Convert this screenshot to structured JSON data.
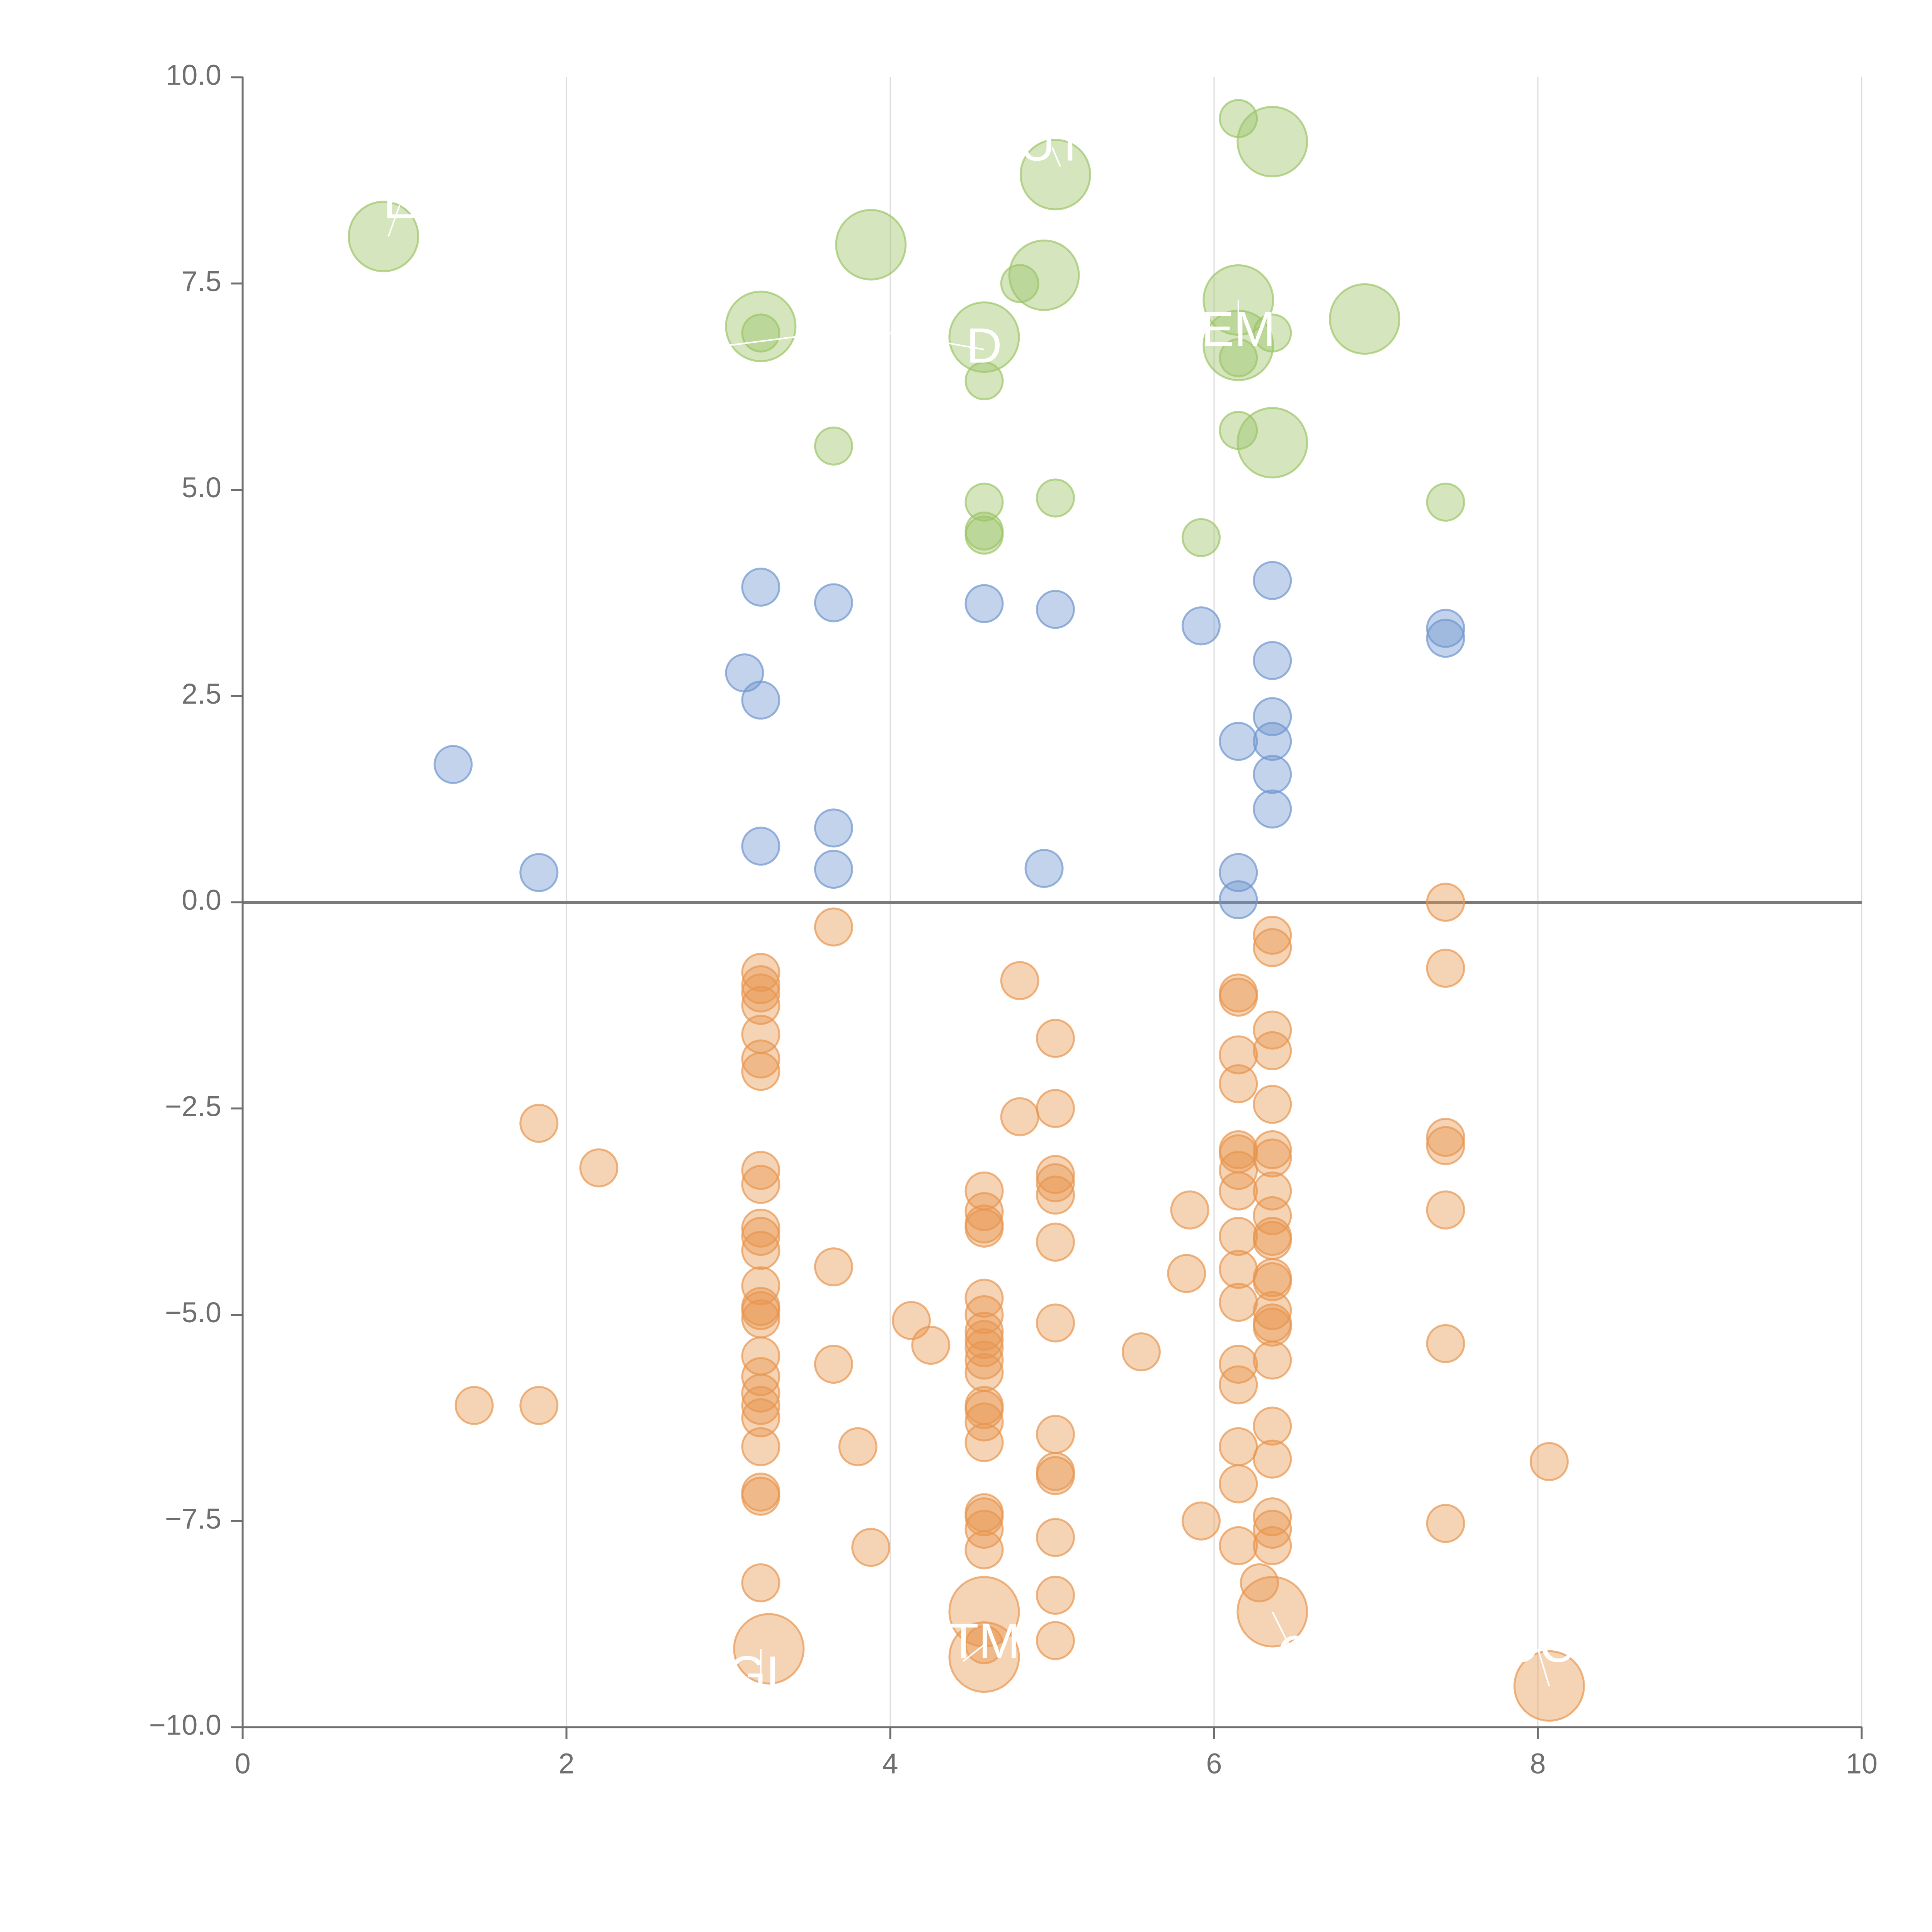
{
  "chart_data": {
    "type": "scatter",
    "title": "",
    "xlabel": "",
    "ylabel": "",
    "xlim": [
      0,
      10
    ],
    "ylim": [
      -10,
      10
    ],
    "x_ticks": [
      0,
      2,
      4,
      6,
      8,
      10
    ],
    "y_ticks": [
      -10,
      -7.5,
      -5,
      -2.5,
      0,
      2.5,
      5,
      7.5,
      10
    ],
    "x_tick_labels": [
      "0",
      "2",
      "4",
      "6",
      "8",
      "10"
    ],
    "y_tick_labels": [
      "−10.0",
      "−7.5",
      "−5.0",
      "−2.5",
      "0.0",
      "2.5",
      "5.0",
      "7.5",
      "10.0"
    ],
    "vertical_grid": true,
    "zero_line": true,
    "colors": {
      "green": "#9cc466",
      "blue": "#6f95cf",
      "orange": "#e8954f",
      "axis": "#6f6f6f",
      "grid": "#dcdcdc",
      "zero": "#7a7a7a"
    },
    "series": [
      {
        "name": "upper",
        "color": "#9cc466",
        "points": [
          [
            6.15,
            9.5
          ],
          [
            5.02,
            4.9
          ],
          [
            7.43,
            4.85
          ],
          [
            4.58,
            4.85
          ],
          [
            5.92,
            4.42
          ],
          [
            4.58,
            4.5
          ],
          [
            4.58,
            4.45
          ],
          [
            3.65,
            5.53
          ],
          [
            6.15,
            5.72
          ],
          [
            4.58,
            6.32
          ],
          [
            6.15,
            6.6
          ],
          [
            6.36,
            6.9
          ],
          [
            4.8,
            7.5
          ],
          [
            3.2,
            6.9
          ]
        ]
      },
      {
        "name": "middle",
        "color": "#6f95cf",
        "points": [
          [
            3.2,
            3.82
          ],
          [
            3.65,
            3.63
          ],
          [
            4.58,
            3.62
          ],
          [
            5.02,
            3.55
          ],
          [
            5.92,
            3.35
          ],
          [
            6.36,
            3.9
          ],
          [
            7.43,
            3.32
          ],
          [
            7.43,
            3.2
          ],
          [
            6.36,
            2.93
          ],
          [
            3.1,
            2.78
          ],
          [
            3.2,
            2.45
          ],
          [
            6.36,
            2.25
          ],
          [
            6.15,
            1.95
          ],
          [
            6.36,
            1.95
          ],
          [
            1.3,
            1.67
          ],
          [
            6.36,
            1.55
          ],
          [
            6.36,
            1.13
          ],
          [
            3.65,
            0.9
          ],
          [
            3.2,
            0.68
          ],
          [
            1.83,
            0.36
          ],
          [
            3.65,
            0.4
          ],
          [
            4.95,
            0.41
          ],
          [
            6.15,
            0.36
          ],
          [
            6.15,
            0.03
          ]
        ]
      },
      {
        "name": "lower",
        "color": "#e8954f",
        "points": [
          [
            7.43,
            0.0
          ],
          [
            3.65,
            -0.3
          ],
          [
            6.36,
            -0.4
          ],
          [
            6.36,
            -0.55
          ],
          [
            7.43,
            -0.8
          ],
          [
            3.2,
            -0.85
          ],
          [
            3.2,
            -1.0
          ],
          [
            3.2,
            -1.1
          ],
          [
            3.2,
            -1.25
          ],
          [
            4.8,
            -0.95
          ],
          [
            6.15,
            -1.1
          ],
          [
            6.15,
            -1.15
          ],
          [
            6.36,
            -1.55
          ],
          [
            3.2,
            -1.6
          ],
          [
            5.02,
            -1.65
          ],
          [
            6.36,
            -1.8
          ],
          [
            3.2,
            -1.9
          ],
          [
            6.15,
            -1.85
          ],
          [
            3.2,
            -2.05
          ],
          [
            6.15,
            -2.2
          ],
          [
            6.36,
            -2.45
          ],
          [
            5.02,
            -2.5
          ],
          [
            1.83,
            -2.68
          ],
          [
            4.8,
            -2.6
          ],
          [
            7.43,
            -2.85
          ],
          [
            7.43,
            -2.95
          ],
          [
            6.15,
            -3.0
          ],
          [
            6.15,
            -3.05
          ],
          [
            6.36,
            -3.0
          ],
          [
            6.36,
            -3.1
          ],
          [
            2.2,
            -3.22
          ],
          [
            3.2,
            -3.25
          ],
          [
            5.02,
            -3.3
          ],
          [
            5.02,
            -3.4
          ],
          [
            6.15,
            -3.25
          ],
          [
            3.2,
            -3.42
          ],
          [
            4.58,
            -3.5
          ],
          [
            5.02,
            -3.55
          ],
          [
            6.15,
            -3.5
          ],
          [
            6.36,
            -3.5
          ],
          [
            5.85,
            -3.73
          ],
          [
            4.58,
            -3.75
          ],
          [
            7.43,
            -3.73
          ],
          [
            6.36,
            -3.8
          ],
          [
            4.58,
            -3.9
          ],
          [
            4.58,
            -3.95
          ],
          [
            3.2,
            -3.95
          ],
          [
            3.2,
            -4.05
          ],
          [
            6.15,
            -4.05
          ],
          [
            6.36,
            -4.05
          ],
          [
            6.36,
            -4.1
          ],
          [
            5.02,
            -4.12
          ],
          [
            3.2,
            -4.22
          ],
          [
            3.65,
            -4.42
          ],
          [
            6.15,
            -4.45
          ],
          [
            5.83,
            -4.5
          ],
          [
            6.36,
            -4.55
          ],
          [
            6.36,
            -4.6
          ],
          [
            3.2,
            -4.65
          ],
          [
            4.58,
            -4.8
          ],
          [
            6.15,
            -4.85
          ],
          [
            3.2,
            -4.9
          ],
          [
            3.2,
            -4.95
          ],
          [
            3.2,
            -5.05
          ],
          [
            6.36,
            -4.95
          ],
          [
            4.58,
            -5.0
          ],
          [
            4.13,
            -5.07
          ],
          [
            5.02,
            -5.1
          ],
          [
            6.36,
            -5.1
          ],
          [
            6.36,
            -5.15
          ],
          [
            4.58,
            -5.2
          ],
          [
            4.58,
            -5.3
          ],
          [
            4.58,
            -5.4
          ],
          [
            7.43,
            -5.35
          ],
          [
            4.25,
            -5.37
          ],
          [
            5.55,
            -5.45
          ],
          [
            3.2,
            -5.5
          ],
          [
            4.58,
            -5.55
          ],
          [
            6.36,
            -5.55
          ],
          [
            3.65,
            -5.6
          ],
          [
            6.15,
            -5.6
          ],
          [
            4.58,
            -5.7
          ],
          [
            3.2,
            -5.75
          ],
          [
            6.15,
            -5.85
          ],
          [
            3.2,
            -5.95
          ],
          [
            1.43,
            -6.1
          ],
          [
            1.83,
            -6.1
          ],
          [
            3.2,
            -6.1
          ],
          [
            4.58,
            -6.1
          ],
          [
            4.58,
            -6.15
          ],
          [
            3.2,
            -6.25
          ],
          [
            4.58,
            -6.3
          ],
          [
            6.36,
            -6.35
          ],
          [
            5.02,
            -6.45
          ],
          [
            4.58,
            -6.55
          ],
          [
            3.2,
            -6.6
          ],
          [
            6.15,
            -6.6
          ],
          [
            3.8,
            -6.6
          ],
          [
            6.36,
            -6.75
          ],
          [
            8.07,
            -6.78
          ],
          [
            5.02,
            -6.9
          ],
          [
            5.02,
            -6.95
          ],
          [
            6.15,
            -7.05
          ],
          [
            3.2,
            -7.15
          ],
          [
            3.2,
            -7.2
          ],
          [
            4.58,
            -7.4
          ],
          [
            4.58,
            -7.45
          ],
          [
            5.92,
            -7.5
          ],
          [
            6.36,
            -7.45
          ],
          [
            7.43,
            -7.53
          ],
          [
            4.58,
            -7.6
          ],
          [
            6.36,
            -7.6
          ],
          [
            5.02,
            -7.7
          ],
          [
            3.88,
            -7.82
          ],
          [
            6.15,
            -7.8
          ],
          [
            6.36,
            -7.8
          ],
          [
            4.58,
            -7.85
          ],
          [
            6.28,
            -8.25
          ],
          [
            3.2,
            -8.25
          ],
          [
            5.02,
            -8.4
          ],
          [
            5.02,
            -8.95
          ],
          [
            4.58,
            -9.0
          ]
        ]
      }
    ],
    "large_bubbles": [
      {
        "x": 0.87,
        "y": 8.07,
        "color": "#9cc466",
        "label": ""
      },
      {
        "x": 3.88,
        "y": 7.97,
        "color": "#9cc466",
        "label": ""
      },
      {
        "x": 5.02,
        "y": 8.82,
        "color": "#9cc466",
        "label": ""
      },
      {
        "x": 6.36,
        "y": 9.22,
        "color": "#9cc466",
        "label": ""
      },
      {
        "x": 4.95,
        "y": 7.6,
        "color": "#9cc466",
        "label": ""
      },
      {
        "x": 6.15,
        "y": 7.3,
        "color": "#9cc466",
        "label": ""
      },
      {
        "x": 6.93,
        "y": 7.07,
        "color": "#9cc466",
        "label": ""
      },
      {
        "x": 3.2,
        "y": 6.98,
        "color": "#9cc466",
        "label": ""
      },
      {
        "x": 4.58,
        "y": 6.85,
        "color": "#9cc466",
        "label": ""
      },
      {
        "x": 6.15,
        "y": 6.75,
        "color": "#9cc466",
        "label": ""
      },
      {
        "x": 6.36,
        "y": 5.57,
        "color": "#9cc466",
        "label": ""
      },
      {
        "x": 4.58,
        "y": -8.6,
        "color": "#e8954f",
        "label": ""
      },
      {
        "x": 6.36,
        "y": -8.6,
        "color": "#e8954f",
        "label": ""
      },
      {
        "x": 3.25,
        "y": -9.05,
        "color": "#e8954f",
        "label": ""
      },
      {
        "x": 4.58,
        "y": -9.15,
        "color": "#e8954f",
        "label": ""
      },
      {
        "x": 8.07,
        "y": -9.5,
        "color": "#e8954f",
        "label": ""
      }
    ],
    "annotations": [
      {
        "text": "E",
        "x": 0.97,
        "y": 8.45,
        "anchor": [
          0.9,
          8.07
        ]
      },
      {
        "text": "UT",
        "x": 5.0,
        "y": 9.15,
        "anchor": [
          5.05,
          8.92
        ]
      },
      {
        "text": "AI",
        "x": 3.6,
        "y": 6.9,
        "anchor": [
          3.0,
          6.75
        ]
      },
      {
        "text": "D",
        "x": 4.58,
        "y": 6.7,
        "anchor": [
          4.0,
          6.9
        ]
      },
      {
        "text": "EM",
        "x": 6.15,
        "y": 6.9,
        "anchor": [
          6.15,
          7.3
        ]
      },
      {
        "text": "TM",
        "x": 4.58,
        "y": -9.0,
        "anchor": [
          4.45,
          -9.2
        ]
      },
      {
        "text": "GL",
        "x": 3.2,
        "y": -9.4,
        "anchor": [
          3.2,
          -9.05
        ]
      },
      {
        "text": "C",
        "x": 6.5,
        "y": -9.15,
        "anchor": [
          6.36,
          -8.6
        ]
      },
      {
        "text": "OC",
        "x": 8.0,
        "y": -9.05,
        "anchor": [
          8.07,
          -9.5
        ]
      }
    ]
  }
}
